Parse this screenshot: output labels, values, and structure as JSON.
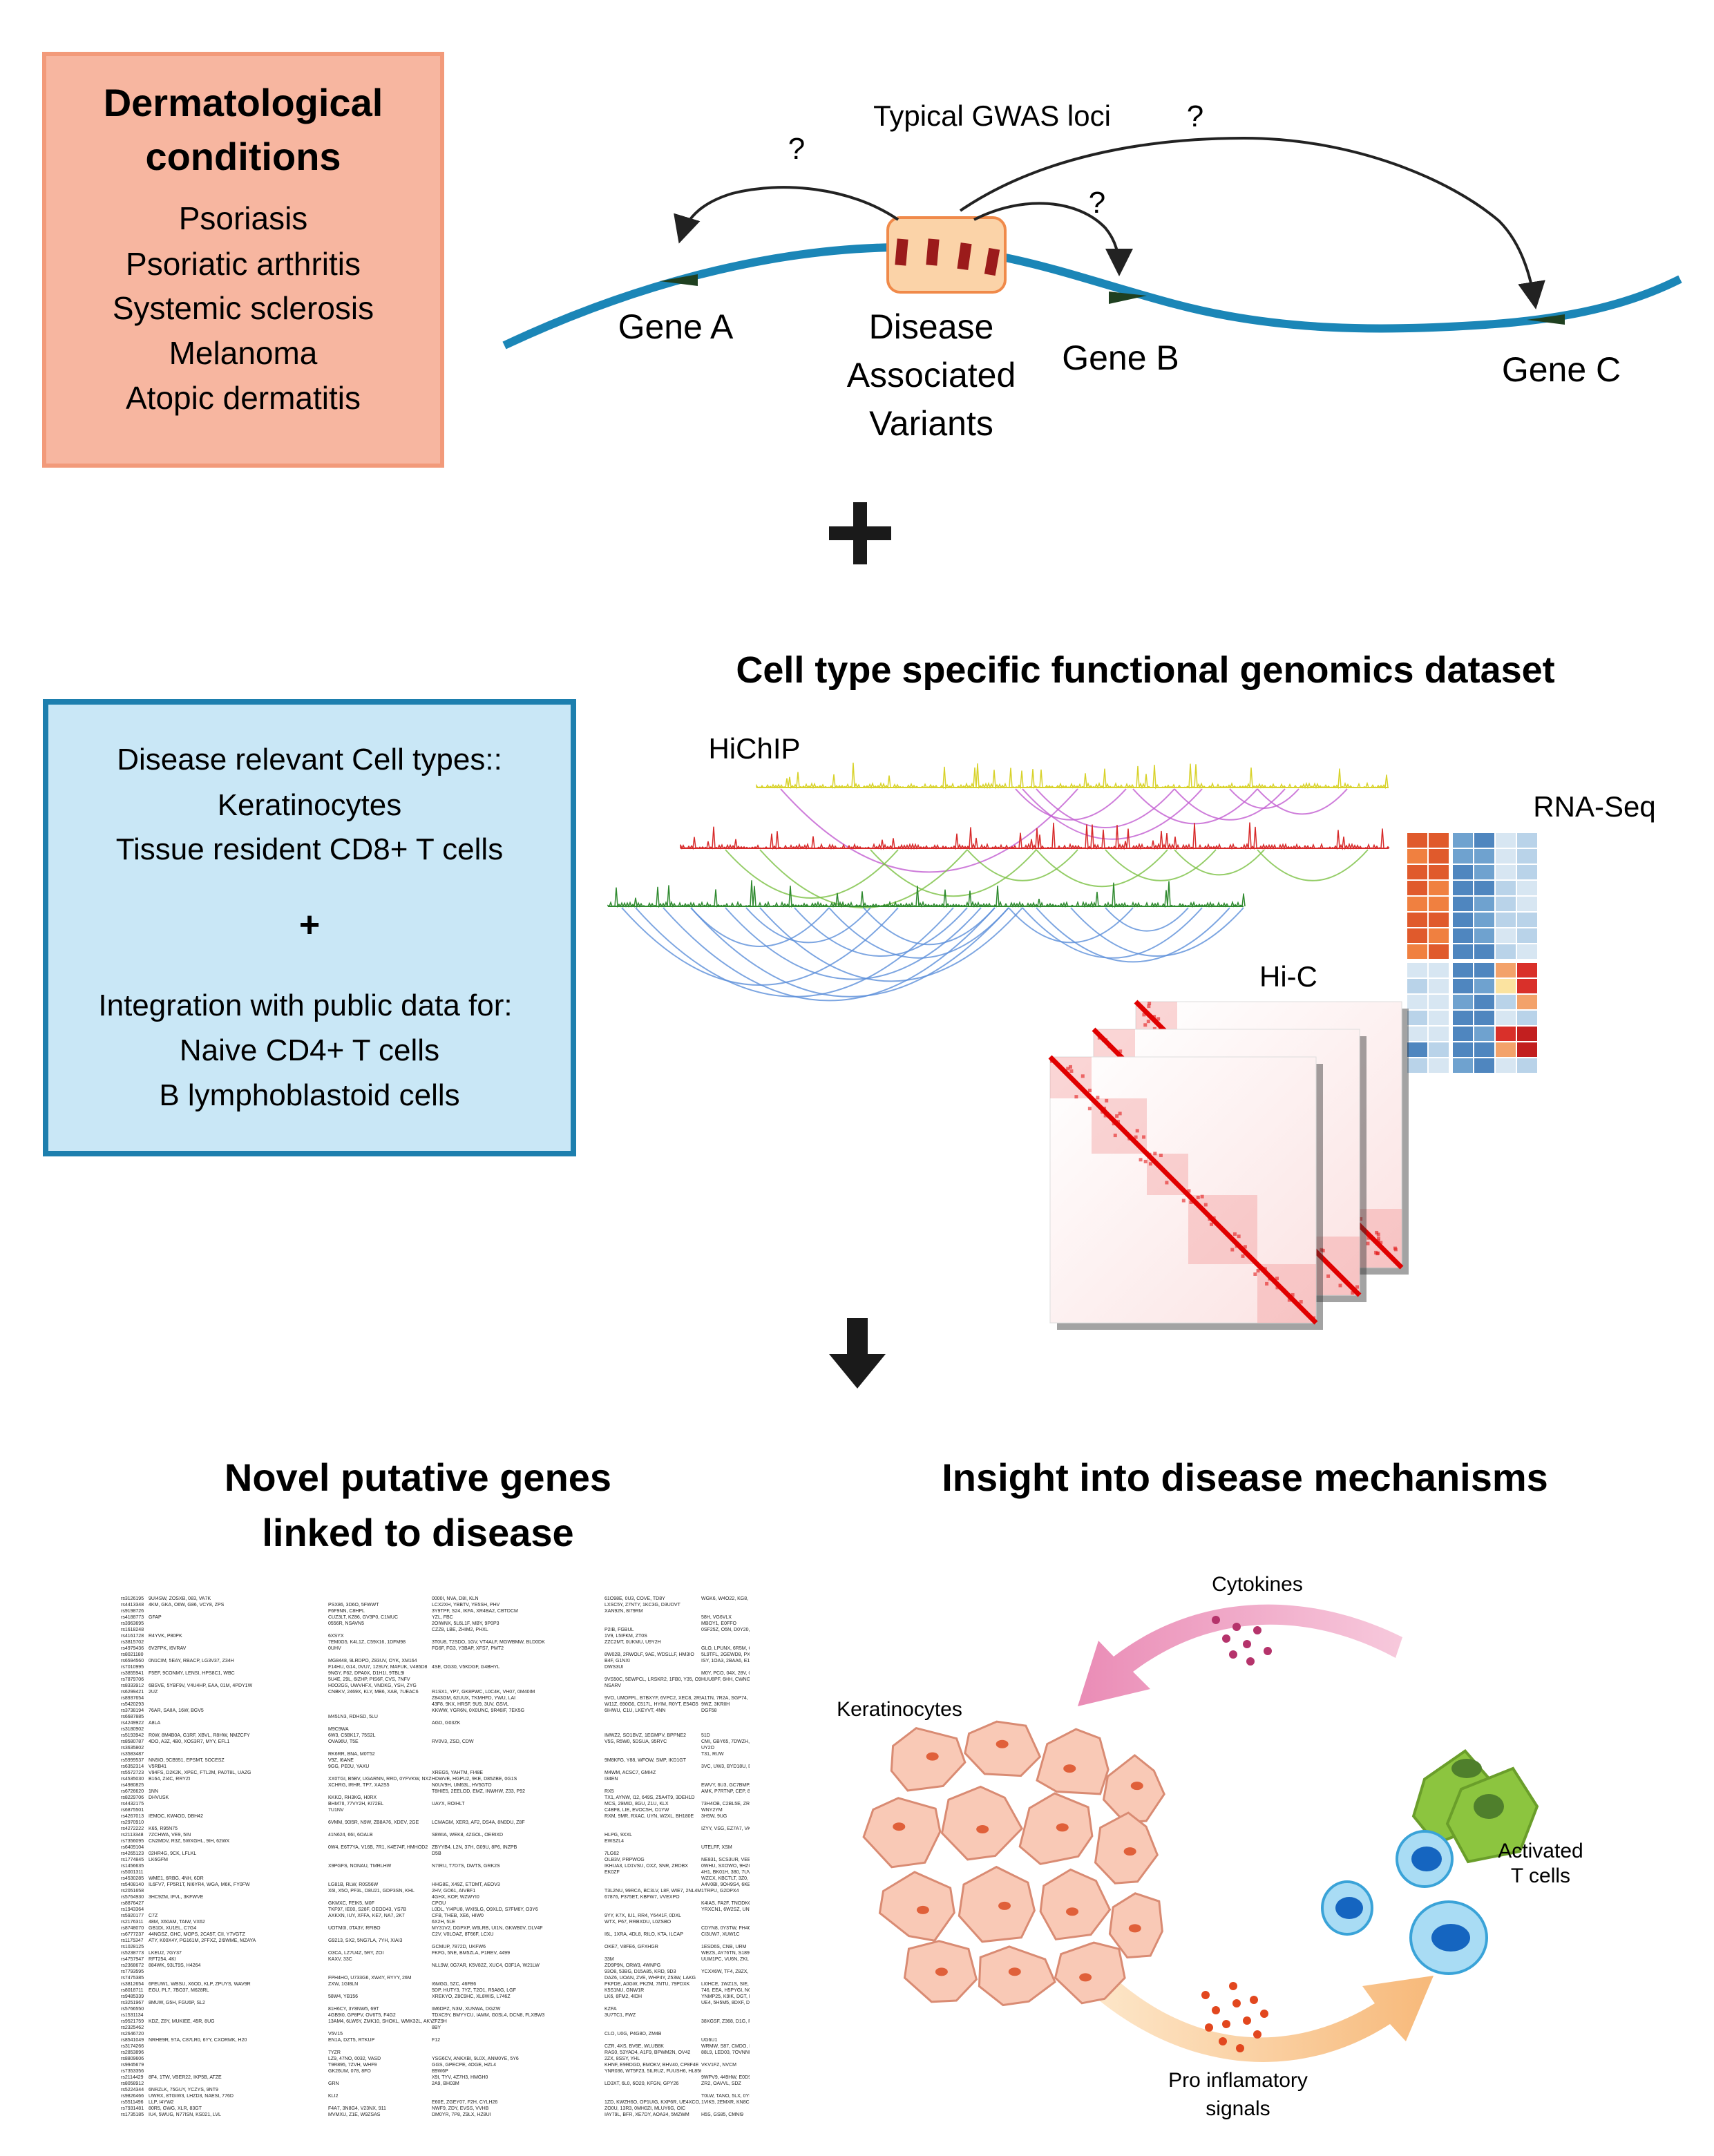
{
  "top_box": {
    "title_line1": "Dermatological",
    "title_line2": "conditions",
    "items": [
      "Psoriasis",
      "Psoriatic arthritis",
      "Systemic sclerosis",
      "Melanoma",
      "Atopic dermatitis"
    ],
    "fill": "#f7b6a0",
    "border": "#f29a7a"
  },
  "gwas": {
    "title": "Typical GWAS loci",
    "question_mark": "?",
    "gene_a": "Gene A",
    "gene_b": "Gene B",
    "gene_c": "Gene C",
    "variants_line1": "Disease",
    "variants_line2": "Associated",
    "variants_line3": "Variants",
    "strand_color": "#1b86b7",
    "variant_color": "#9b1b1b"
  },
  "plus_symbol": "+",
  "cell_box": {
    "line1": "Disease relevant Cell types::",
    "line2": "Keratinocytes",
    "line3": "Tissue resident CD8+ T cells",
    "plus": "+",
    "line4": "Integration with public data for:",
    "line5": "Naive CD4+ T cells",
    "line6": "B lymphoblastoid cells",
    "fill": "#c9e7f6",
    "border": "#1d7fae"
  },
  "dataset": {
    "title": "Cell type specific functional genomics dataset",
    "hichip_label": "HiChIP",
    "rnaseq_label": "RNA-Seq",
    "hic_label": "Hi-C"
  },
  "bottom_left": {
    "title_line1": "Novel putative genes",
    "title_line2": "linked to disease"
  },
  "bottom_right": {
    "title": "Insight into disease mechanisms",
    "cytokines": "Cytokines",
    "keratinocytes": "Keratinocytes",
    "activated_line1": "Activated",
    "activated_line2": "T cells",
    "pro_line1": "Pro inflamatory",
    "pro_line2": "signals"
  }
}
